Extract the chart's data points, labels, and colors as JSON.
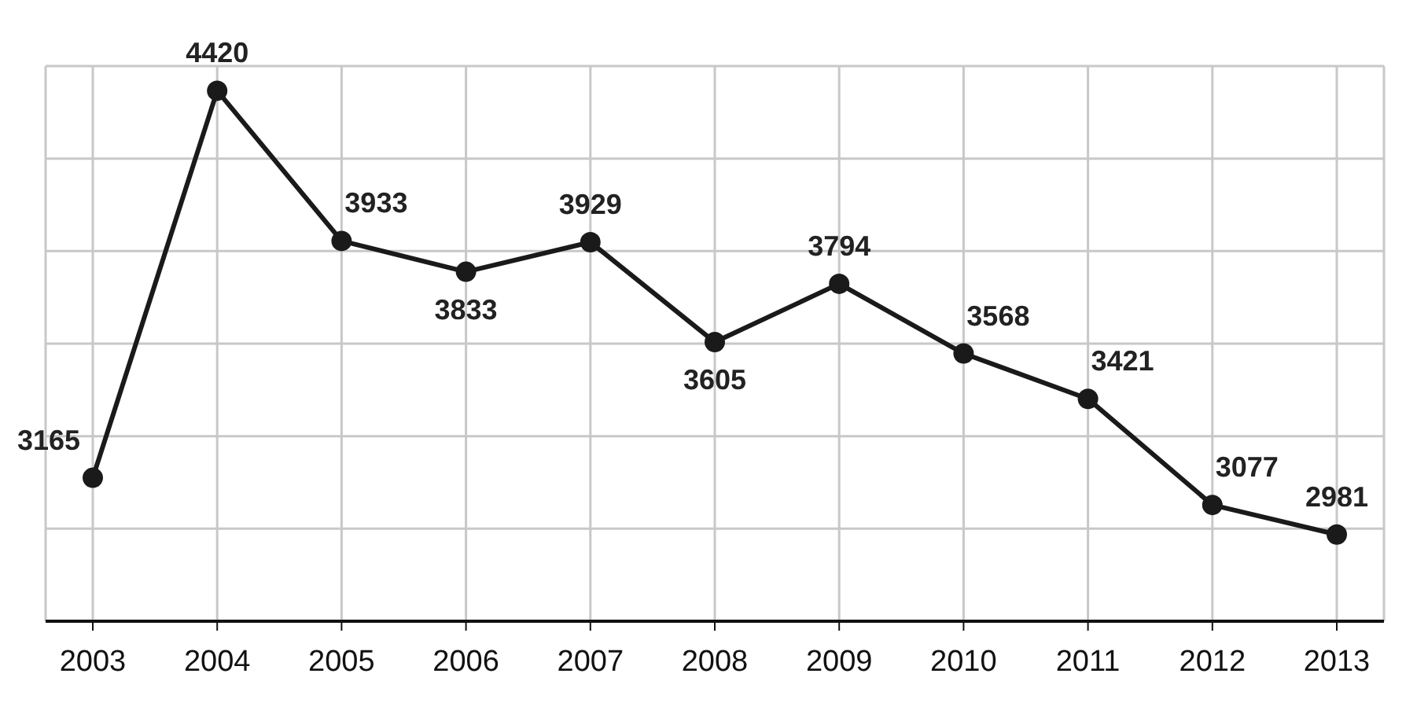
{
  "chart_data": {
    "type": "line",
    "categories": [
      "2003",
      "2004",
      "2005",
      "2006",
      "2007",
      "2008",
      "2009",
      "2010",
      "2011",
      "2012",
      "2013"
    ],
    "series": [
      {
        "color": "#1a1a1a",
        "values": [
          3165,
          4420,
          3933,
          3833,
          3929,
          3605,
          3794,
          3568,
          3421,
          3077,
          2981
        ]
      }
    ],
    "grid": true,
    "tick_labels": "x",
    "data_labels": true,
    "marker": "circle",
    "line_style": "solid"
  }
}
